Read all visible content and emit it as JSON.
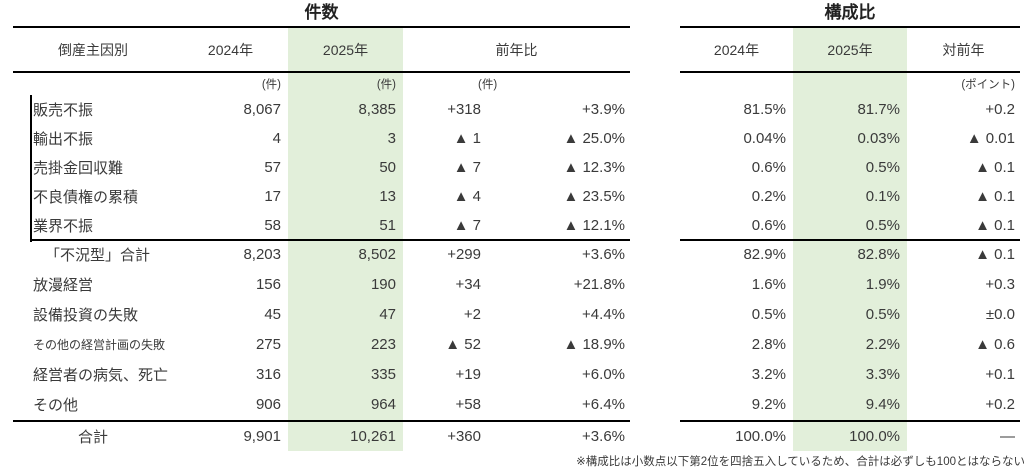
{
  "accent_green": "#e2efda",
  "chart_data": {
    "type": "table",
    "section_titles": {
      "counts": "件数",
      "share": "構成比"
    },
    "headers": {
      "cause": "倒産主因別",
      "y2024": "2024年",
      "y2025": "2025年",
      "yoy_count": "前年比",
      "yoy_share": "対前年",
      "unit_count": "(件)",
      "unit_point": "(ポイント)"
    },
    "rows": [
      {
        "label": "販売不振",
        "n2024": "8,067",
        "n2025": "8,385",
        "diff": "+318",
        "pct": "+3.9%",
        "s2024": "81.5%",
        "s2025": "81.7%",
        "sdiff": "+0.2"
      },
      {
        "label": "輸出不振",
        "n2024": "4",
        "n2025": "3",
        "diff": "▲ 1",
        "pct": "▲ 25.0%",
        "s2024": "0.04%",
        "s2025": "0.03%",
        "sdiff": "▲ 0.01"
      },
      {
        "label": "売掛金回収難",
        "n2024": "57",
        "n2025": "50",
        "diff": "▲ 7",
        "pct": "▲ 12.3%",
        "s2024": "0.6%",
        "s2025": "0.5%",
        "sdiff": "▲ 0.1"
      },
      {
        "label": "不良債権の累積",
        "n2024": "17",
        "n2025": "13",
        "diff": "▲ 4",
        "pct": "▲ 23.5%",
        "s2024": "0.2%",
        "s2025": "0.1%",
        "sdiff": "▲ 0.1"
      },
      {
        "label": "業界不振",
        "n2024": "58",
        "n2025": "51",
        "diff": "▲ 7",
        "pct": "▲ 12.1%",
        "s2024": "0.6%",
        "s2025": "0.5%",
        "sdiff": "▲ 0.1"
      },
      {
        "label": "「不況型」合計",
        "n2024": "8,203",
        "n2025": "8,502",
        "diff": "+299",
        "pct": "+3.6%",
        "s2024": "82.9%",
        "s2025": "82.8%",
        "sdiff": "▲ 0.1"
      },
      {
        "label": "放漫経営",
        "n2024": "156",
        "n2025": "190",
        "diff": "+34",
        "pct": "+21.8%",
        "s2024": "1.6%",
        "s2025": "1.9%",
        "sdiff": "+0.3"
      },
      {
        "label": "設備投資の失敗",
        "n2024": "45",
        "n2025": "47",
        "diff": "+2",
        "pct": "+4.4%",
        "s2024": "0.5%",
        "s2025": "0.5%",
        "sdiff": "±0.0"
      },
      {
        "label": "その他の経営計画の失敗",
        "n2024": "275",
        "n2025": "223",
        "diff": "▲ 52",
        "pct": "▲ 18.9%",
        "s2024": "2.8%",
        "s2025": "2.2%",
        "sdiff": "▲ 0.6"
      },
      {
        "label": "経営者の病気、死亡",
        "n2024": "316",
        "n2025": "335",
        "diff": "+19",
        "pct": "+6.0%",
        "s2024": "3.2%",
        "s2025": "3.3%",
        "sdiff": "+0.1"
      },
      {
        "label": "その他",
        "n2024": "906",
        "n2025": "964",
        "diff": "+58",
        "pct": "+6.4%",
        "s2024": "9.2%",
        "s2025": "9.4%",
        "sdiff": "+0.2"
      },
      {
        "label": "合計",
        "n2024": "9,901",
        "n2025": "10,261",
        "diff": "+360",
        "pct": "+3.6%",
        "s2024": "100.0%",
        "s2025": "100.0%",
        "sdiff": "—"
      }
    ],
    "footnote": "※構成比は小数点以下第2位を四捨五入しているため、合計は必ずしも100とはならない"
  }
}
